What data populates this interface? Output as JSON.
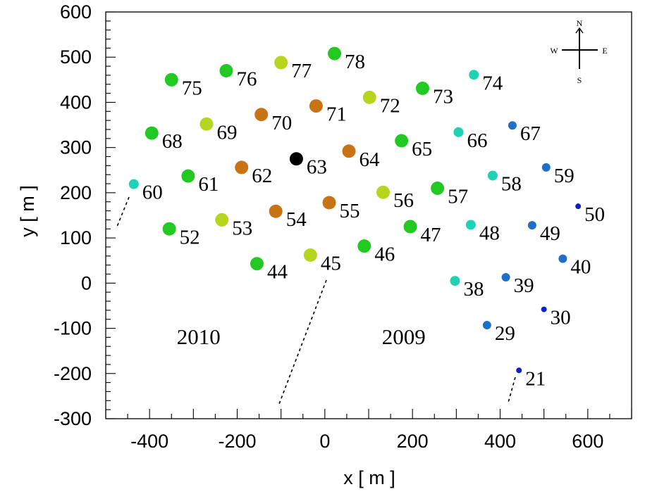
{
  "chart_data": {
    "type": "scatter",
    "xlabel": "x [ m ]",
    "ylabel": "y [ m ]",
    "xlim": [
      -500,
      700
    ],
    "ylim": [
      -300,
      600
    ],
    "xticks": [
      -400,
      -200,
      0,
      200,
      400,
      600
    ],
    "yticks": [
      -300,
      -200,
      -100,
      0,
      100,
      200,
      300,
      400,
      500,
      600
    ],
    "grid": false,
    "points": [
      {
        "id": "75",
        "x": -350,
        "y": 450,
        "color": "#22c922",
        "size": "large"
      },
      {
        "id": "76",
        "x": -225,
        "y": 470,
        "color": "#22c922",
        "size": "large"
      },
      {
        "id": "77",
        "x": -100,
        "y": 488,
        "color": "#b5d51f",
        "size": "large"
      },
      {
        "id": "78",
        "x": 22,
        "y": 508,
        "color": "#22c922",
        "size": "large"
      },
      {
        "id": "74",
        "x": 340,
        "y": 461,
        "color": "#1fd1b5",
        "size": "medium"
      },
      {
        "id": "73",
        "x": 223,
        "y": 431,
        "color": "#22c922",
        "size": "large"
      },
      {
        "id": "72",
        "x": 102,
        "y": 411,
        "color": "#b5d51f",
        "size": "large"
      },
      {
        "id": "71",
        "x": -20,
        "y": 392,
        "color": "#c87314",
        "size": "large"
      },
      {
        "id": "70",
        "x": -145,
        "y": 373,
        "color": "#c87314",
        "size": "large"
      },
      {
        "id": "69",
        "x": -270,
        "y": 352,
        "color": "#b5d51f",
        "size": "large"
      },
      {
        "id": "68",
        "x": -395,
        "y": 332,
        "color": "#22c922",
        "size": "large"
      },
      {
        "id": "67",
        "x": 428,
        "y": 349,
        "color": "#1f6fc8",
        "size": "small"
      },
      {
        "id": "66",
        "x": 305,
        "y": 334,
        "color": "#1fd1b5",
        "size": "medium"
      },
      {
        "id": "65",
        "x": 175,
        "y": 315,
        "color": "#22c922",
        "size": "large"
      },
      {
        "id": "64",
        "x": 55,
        "y": 292,
        "color": "#c87314",
        "size": "large"
      },
      {
        "id": "63",
        "x": -65,
        "y": 275,
        "color": "#000000",
        "size": "large"
      },
      {
        "id": "62",
        "x": -190,
        "y": 256,
        "color": "#c87314",
        "size": "large"
      },
      {
        "id": "61",
        "x": -312,
        "y": 237,
        "color": "#22c922",
        "size": "large"
      },
      {
        "id": "60",
        "x": -436,
        "y": 219,
        "color": "#1fd1b5",
        "size": "medium"
      },
      {
        "id": "59",
        "x": 505,
        "y": 256,
        "color": "#1f6fc8",
        "size": "small"
      },
      {
        "id": "58",
        "x": 383,
        "y": 238,
        "color": "#1fd1b5",
        "size": "medium"
      },
      {
        "id": "57",
        "x": 257,
        "y": 210,
        "color": "#22c922",
        "size": "large"
      },
      {
        "id": "56",
        "x": 133,
        "y": 201,
        "color": "#b5d51f",
        "size": "large"
      },
      {
        "id": "55",
        "x": 10,
        "y": 178,
        "color": "#c87314",
        "size": "large"
      },
      {
        "id": "54",
        "x": -112,
        "y": 159,
        "color": "#c87314",
        "size": "large"
      },
      {
        "id": "53",
        "x": -235,
        "y": 140,
        "color": "#b5d51f",
        "size": "large"
      },
      {
        "id": "52",
        "x": -355,
        "y": 120,
        "color": "#22c922",
        "size": "large"
      },
      {
        "id": "50",
        "x": 578,
        "y": 170,
        "color": "#0f1fc8",
        "size": "tiny"
      },
      {
        "id": "49",
        "x": 473,
        "y": 128,
        "color": "#1f6fc8",
        "size": "small"
      },
      {
        "id": "48",
        "x": 333,
        "y": 129,
        "color": "#1fd1b5",
        "size": "medium"
      },
      {
        "id": "47",
        "x": 195,
        "y": 125,
        "color": "#22c922",
        "size": "large"
      },
      {
        "id": "46",
        "x": 90,
        "y": 82,
        "color": "#22c922",
        "size": "large"
      },
      {
        "id": "45",
        "x": -33,
        "y": 62,
        "color": "#b5d51f",
        "size": "large"
      },
      {
        "id": "44",
        "x": -155,
        "y": 43,
        "color": "#22c922",
        "size": "large"
      },
      {
        "id": "40",
        "x": 543,
        "y": 54,
        "color": "#1f6fc8",
        "size": "small"
      },
      {
        "id": "39",
        "x": 413,
        "y": 13,
        "color": "#1f6fc8",
        "size": "small"
      },
      {
        "id": "38",
        "x": 297,
        "y": 5,
        "color": "#1fd1b5",
        "size": "medium"
      },
      {
        "id": "30",
        "x": 500,
        "y": -58,
        "color": "#0f1fc8",
        "size": "tiny"
      },
      {
        "id": "29",
        "x": 370,
        "y": -93,
        "color": "#1f6fc8",
        "size": "small"
      },
      {
        "id": "21",
        "x": 443,
        "y": -193,
        "color": "#0f1fc8",
        "size": "tiny"
      }
    ],
    "annotations": [
      {
        "text": "2010",
        "x": -288,
        "y": -135
      },
      {
        "text": "2009",
        "x": 180,
        "y": -135
      }
    ],
    "compass": {
      "north": "N",
      "south": "S",
      "east": "E",
      "west": "W"
    }
  }
}
